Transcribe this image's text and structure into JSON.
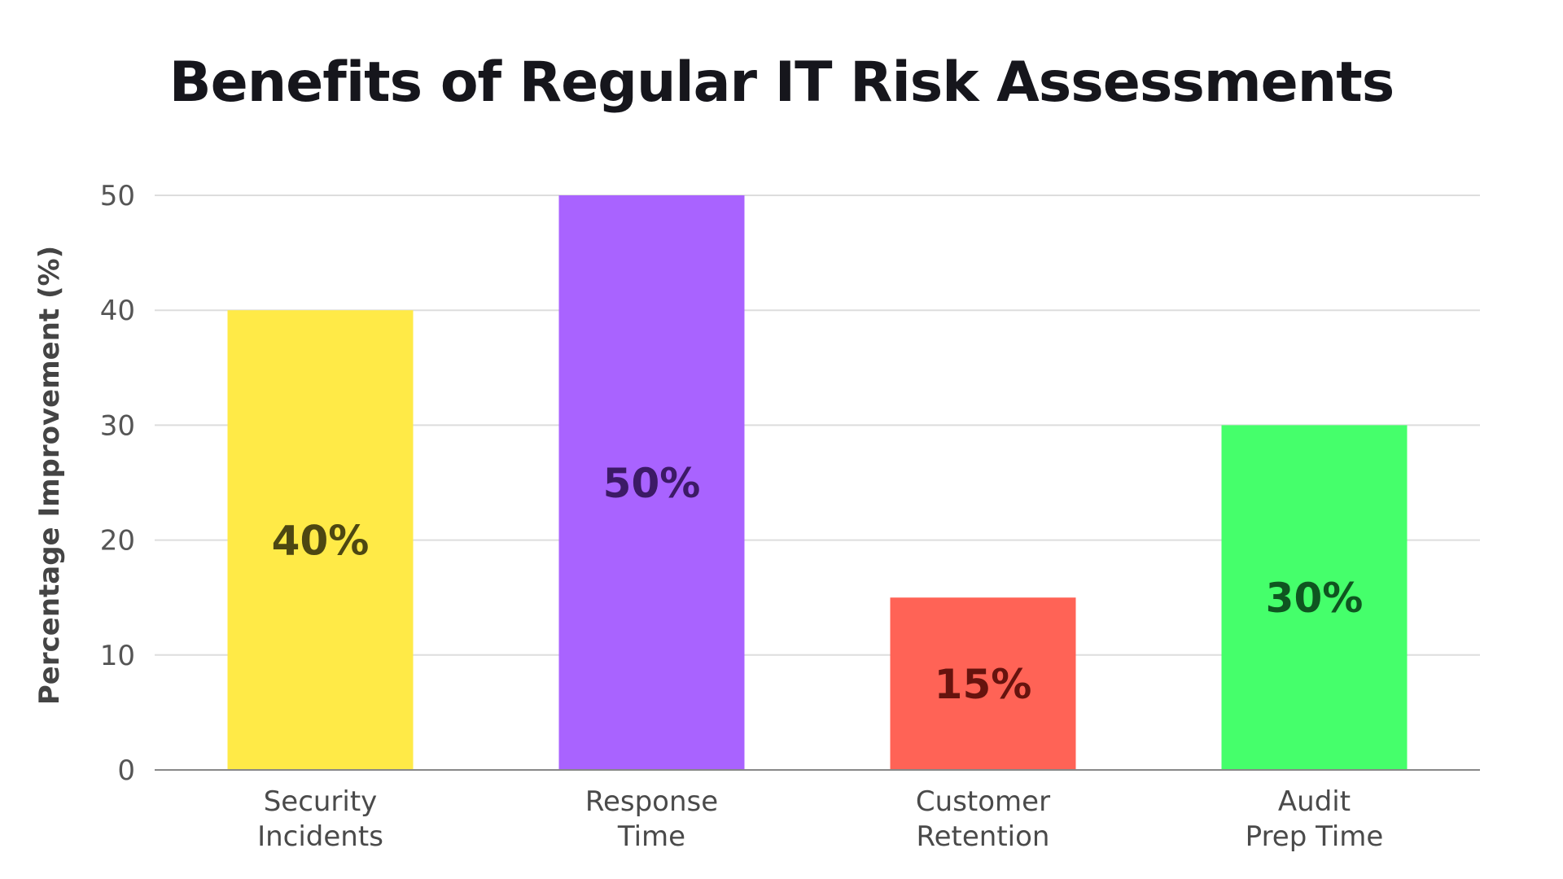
{
  "chart_data": {
    "type": "bar",
    "title": "Benefits of Regular IT Risk Assessments",
    "xlabel": "",
    "ylabel": "Percentage Improvement (%)",
    "ylim": [
      0,
      50
    ],
    "yticks": [
      0,
      10,
      20,
      30,
      40,
      50
    ],
    "grid": true,
    "legend": "none",
    "categories": [
      [
        "Security",
        "Incidents"
      ],
      [
        "Response",
        "Time"
      ],
      [
        "Customer",
        "Retention"
      ],
      [
        "Audit",
        "Prep Time"
      ]
    ],
    "values": [
      40,
      50,
      15,
      30
    ],
    "data_labels": [
      "40%",
      "50%",
      "15%",
      "30%"
    ],
    "bar_colors": [
      "#ffea47",
      "#a963ff",
      "#ff6356",
      "#45ff6b"
    ],
    "label_colors": [
      "#4d4712",
      "#3c1a66",
      "#66130e",
      "#0f5520"
    ],
    "gridline_color": "#dddddd",
    "axis_color": "#888888"
  }
}
